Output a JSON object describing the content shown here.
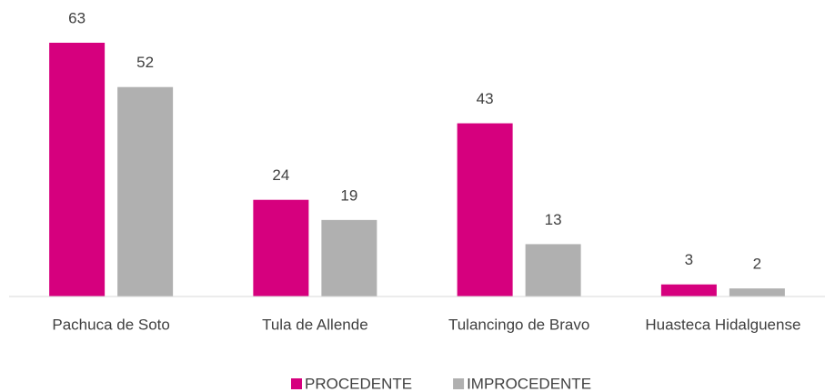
{
  "chart_data": {
    "type": "bar",
    "categories": [
      "Pachuca de Soto",
      "Tula de Allende",
      "Tulancingo de Bravo",
      "Huasteca Hidalguense"
    ],
    "series": [
      {
        "name": "PROCEDENTE",
        "color": "#d6007e",
        "values": [
          63,
          24,
          43,
          3
        ]
      },
      {
        "name": "IMPROCEDENTE",
        "color": "#b0b0b0",
        "values": [
          52,
          19,
          13,
          2
        ]
      }
    ],
    "legend": "bottom"
  }
}
